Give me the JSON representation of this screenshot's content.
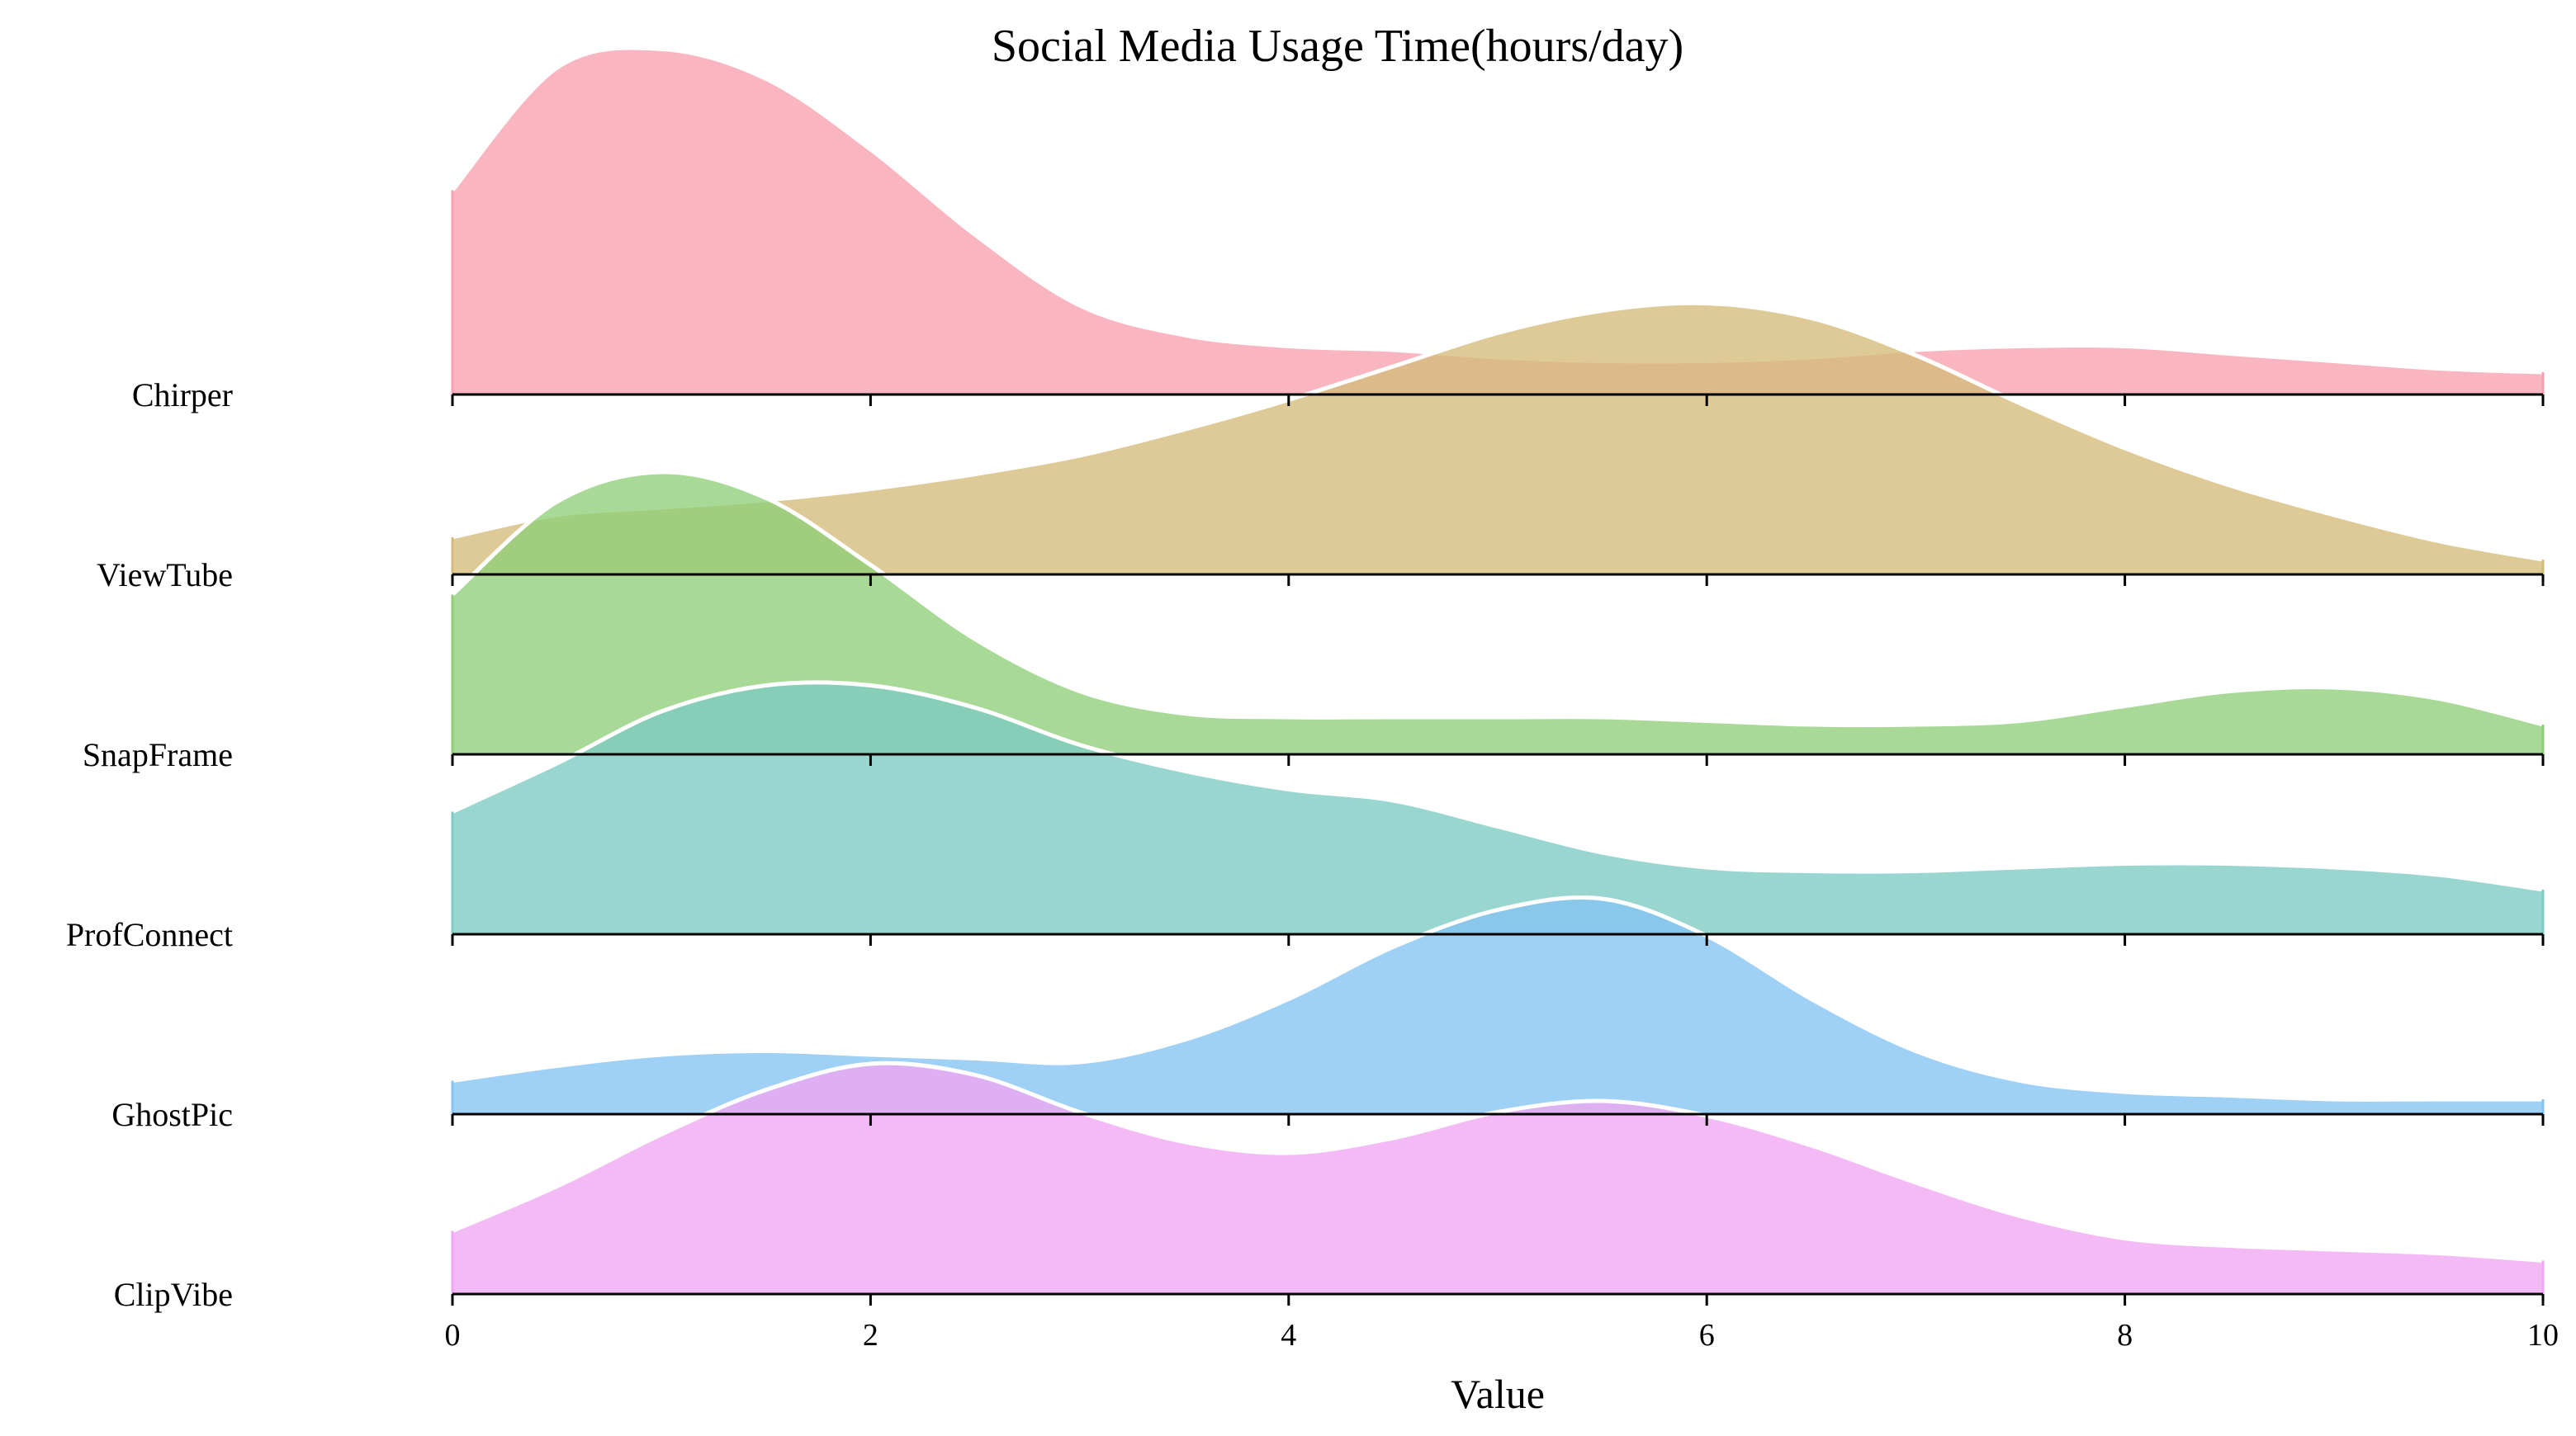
{
  "chart_data": {
    "type": "ridgeline",
    "title": "Social Media Usage Time(hours/day)",
    "xlabel": "Value",
    "xlim": [
      0,
      10
    ],
    "xticks": [
      0,
      2,
      4,
      6,
      8,
      10
    ],
    "grid": false,
    "series": [
      {
        "name": "Chirper",
        "color": "#F7A1B0",
        "x": [
          0,
          0.5,
          1,
          1.5,
          2,
          2.5,
          3,
          3.5,
          4,
          4.5,
          5,
          5.5,
          6,
          6.5,
          7,
          7.5,
          8,
          8.5,
          9,
          9.5,
          10
        ],
        "density": [
          0.55,
          0.88,
          0.93,
          0.85,
          0.66,
          0.43,
          0.24,
          0.16,
          0.13,
          0.12,
          0.1,
          0.09,
          0.09,
          0.1,
          0.12,
          0.13,
          0.13,
          0.11,
          0.09,
          0.07,
          0.06
        ]
      },
      {
        "name": "ViewTube",
        "color": "#D4BB7A",
        "x": [
          0,
          0.5,
          1,
          1.5,
          2,
          2.5,
          3,
          3.5,
          4,
          4.5,
          5,
          5.5,
          6,
          6.5,
          7,
          7.5,
          8,
          8.5,
          9,
          9.5,
          10
        ],
        "density": [
          0.1,
          0.16,
          0.18,
          0.2,
          0.23,
          0.27,
          0.32,
          0.39,
          0.47,
          0.56,
          0.65,
          0.71,
          0.73,
          0.69,
          0.59,
          0.46,
          0.34,
          0.24,
          0.16,
          0.09,
          0.04
        ]
      },
      {
        "name": "SnapFrame",
        "color": "#8FCE78",
        "x": [
          0,
          0.5,
          1,
          1.5,
          2,
          2.5,
          3,
          3.5,
          4,
          4.5,
          5,
          5.5,
          6,
          6.5,
          7,
          7.5,
          8,
          8.5,
          9,
          9.5,
          10
        ],
        "density": [
          0.43,
          0.68,
          0.76,
          0.69,
          0.51,
          0.31,
          0.17,
          0.11,
          0.1,
          0.1,
          0.1,
          0.1,
          0.09,
          0.08,
          0.08,
          0.09,
          0.13,
          0.17,
          0.18,
          0.15,
          0.08
        ]
      },
      {
        "name": "ProfConnect",
        "color": "#7ECBC3",
        "x": [
          0,
          0.5,
          1,
          1.5,
          2,
          2.5,
          3,
          3.5,
          4,
          4.5,
          5,
          5.5,
          6,
          6.5,
          7,
          7.5,
          8,
          8.5,
          9,
          9.5,
          10
        ],
        "density": [
          0.33,
          0.46,
          0.6,
          0.67,
          0.67,
          0.61,
          0.51,
          0.44,
          0.39,
          0.36,
          0.29,
          0.22,
          0.18,
          0.17,
          0.17,
          0.18,
          0.19,
          0.19,
          0.18,
          0.16,
          0.12
        ]
      },
      {
        "name": "GhostPic",
        "color": "#84C3F2",
        "x": [
          0,
          0.5,
          1,
          1.5,
          2,
          2.5,
          3,
          3.5,
          4,
          4.5,
          5,
          5.5,
          6,
          6.5,
          7,
          7.5,
          8,
          8.5,
          9,
          9.5,
          10
        ],
        "density": [
          0.09,
          0.13,
          0.16,
          0.17,
          0.16,
          0.15,
          0.14,
          0.2,
          0.31,
          0.45,
          0.55,
          0.58,
          0.48,
          0.31,
          0.17,
          0.09,
          0.06,
          0.05,
          0.04,
          0.04,
          0.04
        ]
      },
      {
        "name": "ClipVibe",
        "color": "#F0A6F2",
        "x": [
          0,
          0.5,
          1,
          1.5,
          2,
          2.5,
          3,
          3.5,
          4,
          4.5,
          5,
          5.5,
          6,
          6.5,
          7,
          7.5,
          8,
          8.5,
          9,
          9.5,
          10
        ],
        "density": [
          0.17,
          0.29,
          0.43,
          0.55,
          0.62,
          0.59,
          0.49,
          0.41,
          0.38,
          0.42,
          0.49,
          0.52,
          0.48,
          0.4,
          0.3,
          0.21,
          0.15,
          0.13,
          0.12,
          0.11,
          0.09
        ]
      }
    ]
  }
}
